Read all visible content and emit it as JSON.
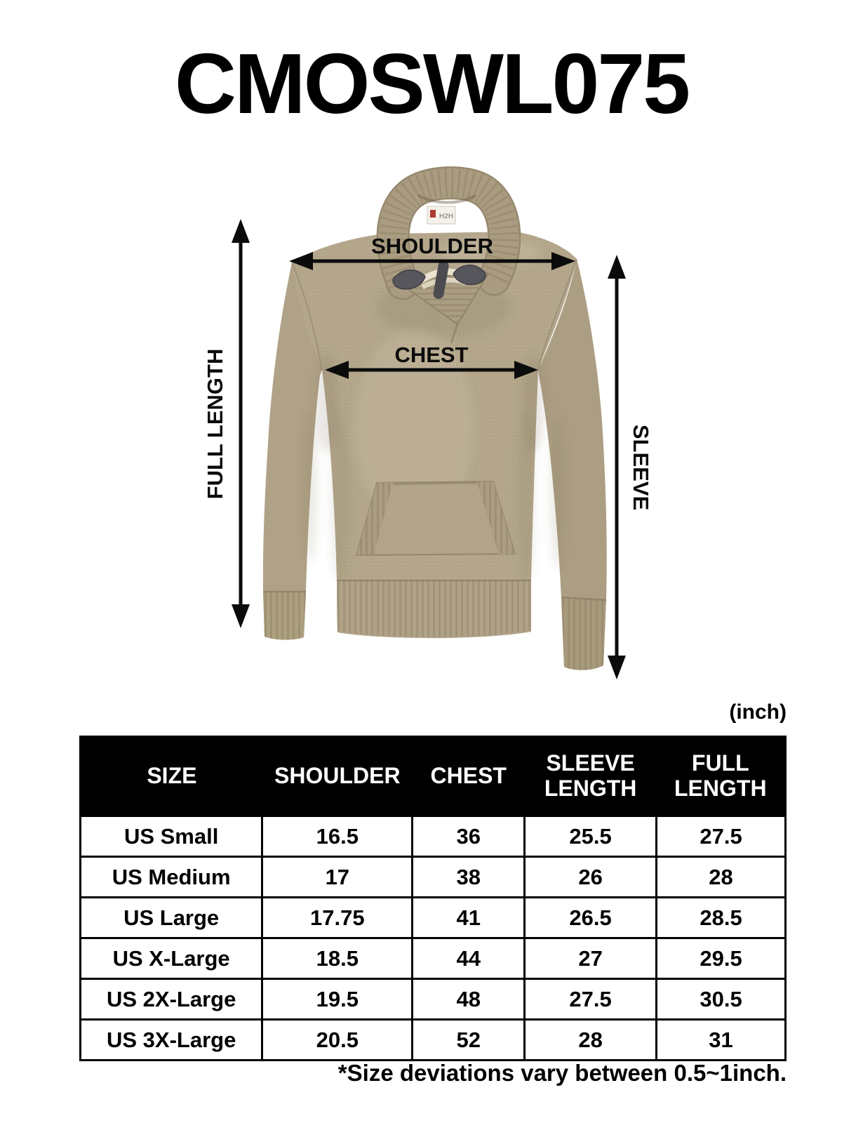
{
  "title": "CMOSWL075",
  "diagram": {
    "measurement_labels": {
      "shoulder": "SHOULDER",
      "chest": "CHEST",
      "full_length": "FULL LENGTH",
      "sleeve": "SLEEVE"
    },
    "brand_tag": "H2H",
    "sweater_color": "#b3a68c"
  },
  "units_label": "(inch)",
  "size_table": {
    "columns": [
      "SIZE",
      "SHOULDER",
      "CHEST",
      "SLEEVE LENGTH",
      "FULL LENGTH"
    ],
    "rows": [
      [
        "US Small",
        "16.5",
        "36",
        "25.5",
        "27.5"
      ],
      [
        "US Medium",
        "17",
        "38",
        "26",
        "28"
      ],
      [
        "US Large",
        "17.75",
        "41",
        "26.5",
        "28.5"
      ],
      [
        "US X-Large",
        "18.5",
        "44",
        "27",
        "29.5"
      ],
      [
        "US 2X-Large",
        "19.5",
        "48",
        "27.5",
        "30.5"
      ],
      [
        "US 3X-Large",
        "20.5",
        "52",
        "28",
        "31"
      ]
    ]
  },
  "footnote": "*Size deviations vary between 0.5~1inch.",
  "colors": {
    "table_header_bg": "#000000",
    "table_header_text": "#ffffff",
    "text": "#000000",
    "annotation": "#0b0b0b",
    "sweater_base": "#b3a68c"
  }
}
